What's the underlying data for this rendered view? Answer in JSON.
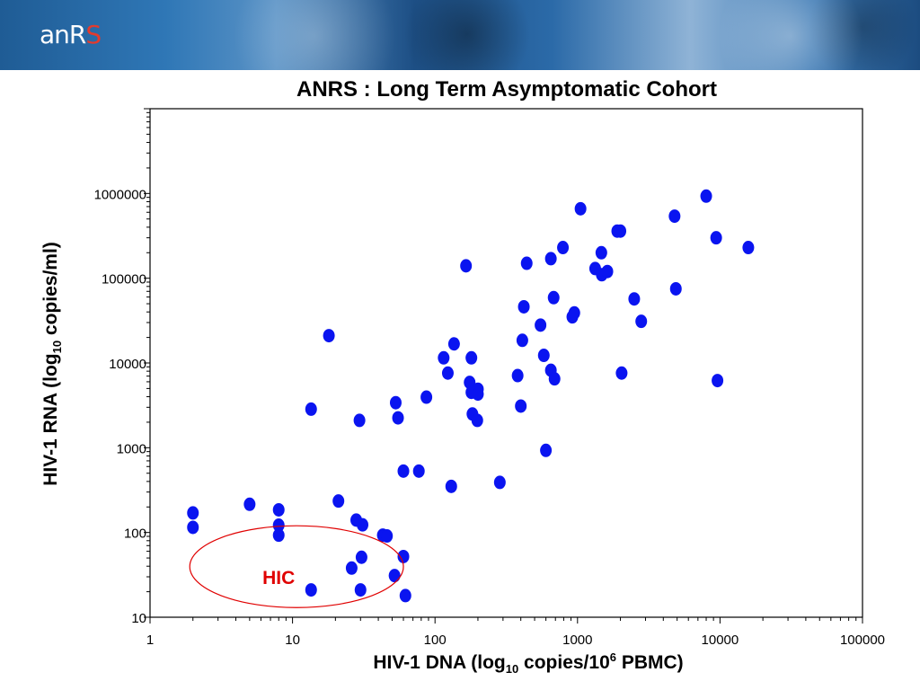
{
  "banner": {
    "logo_text_main": "anR",
    "logo_text_accent": "S"
  },
  "colors": {
    "points": "#0a14f0",
    "annotation": "#e00000",
    "banner": "#2f77b6"
  },
  "chart_data": {
    "type": "scatter",
    "title": "ANRS : Long Term Asymptomatic Cohort",
    "xlabel": {
      "prefix": "HIV-1 DNA (log",
      "sub": "10",
      "middle": " copies/10",
      "sup": "6",
      "suffix": " PBMC)"
    },
    "ylabel": {
      "prefix": "HIV-1 RNA  (log",
      "sub": "10",
      "suffix": " copies/ml)"
    },
    "x_scale": "log",
    "y_scale": "log",
    "xlim": [
      1,
      100000
    ],
    "ylim": [
      10,
      10000000
    ],
    "x_ticks": [
      {
        "value": 1,
        "label": "1"
      },
      {
        "value": 10,
        "label": "10"
      },
      {
        "value": 100,
        "label": "100"
      },
      {
        "value": 1000,
        "label": "1000"
      },
      {
        "value": 10000,
        "label": "10000"
      },
      {
        "value": 100000,
        "label": "100000"
      }
    ],
    "y_ticks": [
      {
        "value": 10,
        "label": "10"
      },
      {
        "value": 100,
        "label": "100"
      },
      {
        "value": 1000,
        "label": "1000"
      },
      {
        "value": 10000,
        "label": "10000"
      },
      {
        "value": 100000,
        "label": "100000"
      },
      {
        "value": 1000000,
        "label": "1000000"
      }
    ],
    "grid": false,
    "legend": "none",
    "annotation": {
      "label": "HIC",
      "x_range": [
        1.9,
        60
      ],
      "y_range": [
        13,
        120
      ]
    },
    "points": [
      [
        2,
        170
      ],
      [
        2,
        115
      ],
      [
        5,
        215
      ],
      [
        8,
        185
      ],
      [
        8,
        122
      ],
      [
        8,
        93
      ],
      [
        13.5,
        2850
      ],
      [
        18,
        21000
      ],
      [
        13.5,
        21
      ],
      [
        21,
        235
      ],
      [
        29.5,
        2100
      ],
      [
        28,
        140
      ],
      [
        31,
        123
      ],
      [
        26,
        38
      ],
      [
        30.5,
        51
      ],
      [
        30,
        21
      ],
      [
        43,
        93
      ],
      [
        46,
        91
      ],
      [
        52,
        31
      ],
      [
        60,
        52
      ],
      [
        62,
        18
      ],
      [
        53,
        3400
      ],
      [
        55,
        2250
      ],
      [
        60,
        530
      ],
      [
        77,
        530
      ],
      [
        87,
        3950
      ],
      [
        115,
        11500
      ],
      [
        123,
        7600
      ],
      [
        130,
        350
      ],
      [
        136,
        16800
      ],
      [
        165,
        140000
      ],
      [
        175,
        5900
      ],
      [
        180,
        4500
      ],
      [
        180,
        11500
      ],
      [
        183,
        2500
      ],
      [
        198,
        2100
      ],
      [
        200,
        4900
      ],
      [
        200,
        4300
      ],
      [
        285,
        390
      ],
      [
        380,
        7100
      ],
      [
        400,
        3100
      ],
      [
        410,
        18500
      ],
      [
        420,
        46000
      ],
      [
        440,
        150000
      ],
      [
        550,
        28000
      ],
      [
        580,
        12300
      ],
      [
        600,
        930
      ],
      [
        650,
        170000
      ],
      [
        650,
        8200
      ],
      [
        680,
        59000
      ],
      [
        690,
        6500
      ],
      [
        790,
        230000
      ],
      [
        920,
        35000
      ],
      [
        950,
        39000
      ],
      [
        1050,
        660000
      ],
      [
        1330,
        130000
      ],
      [
        1470,
        200000
      ],
      [
        1480,
        110000
      ],
      [
        1620,
        120000
      ],
      [
        1900,
        360000
      ],
      [
        2000,
        360000
      ],
      [
        2040,
        7600
      ],
      [
        2500,
        57000
      ],
      [
        2800,
        31000
      ],
      [
        4800,
        540000
      ],
      [
        4900,
        75000
      ],
      [
        8000,
        930000
      ],
      [
        9400,
        300000
      ],
      [
        9600,
        6200
      ],
      [
        15800,
        230000
      ]
    ]
  }
}
